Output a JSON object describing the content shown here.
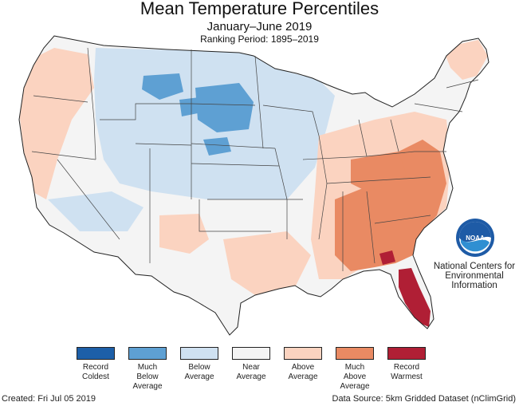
{
  "title": "Mean Temperature Percentiles",
  "subtitle": "January–June 2019",
  "period": "Ranking Period: 1895–2019",
  "colors": {
    "record_coldest": "#1d5fa8",
    "much_below": "#5ea0d3",
    "below": "#cfe1f1",
    "near": "#f4f4f4",
    "above": "#fbd3c0",
    "much_above": "#e98a63",
    "record_warmest": "#b01f35"
  },
  "legend": [
    {
      "key": "record_coldest",
      "lines": [
        "Record",
        "Coldest"
      ]
    },
    {
      "key": "much_below",
      "lines": [
        "Much",
        "Below",
        "Average"
      ]
    },
    {
      "key": "below",
      "lines": [
        "Below",
        "Average"
      ]
    },
    {
      "key": "near",
      "lines": [
        "Near",
        "Average"
      ]
    },
    {
      "key": "above",
      "lines": [
        "Above",
        "Average"
      ]
    },
    {
      "key": "much_above",
      "lines": [
        "Much",
        "Above",
        "Average"
      ]
    },
    {
      "key": "record_warmest",
      "lines": [
        "Record",
        "Warmest"
      ]
    }
  ],
  "agency": [
    "National Centers for",
    "Environmental",
    "Information"
  ],
  "logo_text": "NOAA",
  "created": "Created: Fri Jul 05 2019",
  "source": "Data Source: 5km Gridded Dataset (nClimGrid)"
}
